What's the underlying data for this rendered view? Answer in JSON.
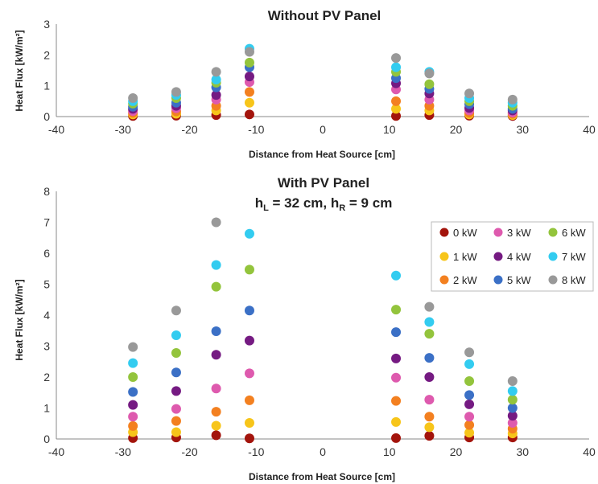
{
  "chart_data": [
    {
      "type": "scatter",
      "title": "Without PV Panel",
      "xlabel": "Distance from Heat Source [cm]",
      "ylabel": "Heat Flux [kW/m²]",
      "xlim": [
        -40,
        40
      ],
      "ylim": [
        0,
        3
      ],
      "xticks": [
        "-40",
        "-30",
        "-20",
        "-10",
        "0",
        "10",
        "20",
        "30",
        "40"
      ],
      "yticks": [
        "0",
        "1",
        "2",
        "3"
      ],
      "grid": false,
      "x": [
        -28.5,
        -22,
        -16,
        -11,
        11,
        16,
        22,
        28.5
      ],
      "series": [
        {
          "name": "0 kW",
          "color": "#a3140c",
          "values": [
            0.02,
            0.03,
            0.05,
            0.07,
            0.02,
            0.05,
            0.03,
            0.02
          ]
        },
        {
          "name": "1 kW",
          "color": "#f7c51a",
          "values": [
            0.07,
            0.09,
            0.2,
            0.45,
            0.25,
            0.2,
            0.07,
            0.05
          ]
        },
        {
          "name": "2 kW",
          "color": "#f38020",
          "values": [
            0.12,
            0.17,
            0.35,
            0.8,
            0.5,
            0.35,
            0.12,
            0.09
          ]
        },
        {
          "name": "3 kW",
          "color": "#de5aae",
          "values": [
            0.18,
            0.27,
            0.55,
            1.12,
            0.88,
            0.55,
            0.2,
            0.13
          ]
        },
        {
          "name": "4 kW",
          "color": "#751a82",
          "values": [
            0.25,
            0.35,
            0.7,
            1.3,
            1.08,
            0.75,
            0.28,
            0.2
          ]
        },
        {
          "name": "5 kW",
          "color": "#3b70c6",
          "values": [
            0.32,
            0.45,
            0.95,
            1.6,
            1.25,
            0.9,
            0.4,
            0.25
          ]
        },
        {
          "name": "6 kW",
          "color": "#93c43c",
          "values": [
            0.42,
            0.6,
            1.1,
            1.75,
            1.45,
            1.05,
            0.5,
            0.35
          ]
        },
        {
          "name": "7 kW",
          "color": "#33ccf0",
          "values": [
            0.5,
            0.7,
            1.2,
            2.2,
            1.6,
            1.45,
            0.6,
            0.45
          ]
        },
        {
          "name": "8 kW",
          "color": "#999999",
          "values": [
            0.6,
            0.8,
            1.45,
            2.1,
            1.9,
            1.4,
            0.75,
            0.55
          ]
        }
      ]
    },
    {
      "type": "scatter",
      "title": "With PV Panel",
      "subtitle_main": "h",
      "subtitle_sub_l": "L",
      "subtitle_mid": " = 32 cm, h",
      "subtitle_sub_r": "R",
      "subtitle_tail": " = 9 cm",
      "xlabel": "Distance from Heat Source [cm]",
      "ylabel": "Heat Flux [kW/m²]",
      "xlim": [
        -40,
        40
      ],
      "ylim": [
        0,
        8
      ],
      "xticks": [
        "-40",
        "-30",
        "-20",
        "-10",
        "0",
        "10",
        "20",
        "30",
        "40"
      ],
      "yticks": [
        "0",
        "1",
        "2",
        "3",
        "4",
        "5",
        "6",
        "7",
        "8"
      ],
      "grid": false,
      "legend": "top-right",
      "x": [
        -28.5,
        -22,
        -16,
        -11,
        11,
        16,
        22,
        28.5
      ],
      "series": [
        {
          "name": "0 kW",
          "color": "#a3140c",
          "values": [
            0.03,
            0.05,
            0.12,
            0.02,
            0.03,
            0.1,
            0.05,
            0.05
          ]
        },
        {
          "name": "1 kW",
          "color": "#f7c51a",
          "values": [
            0.22,
            0.22,
            0.43,
            0.52,
            0.55,
            0.38,
            0.2,
            0.18
          ]
        },
        {
          "name": "2 kW",
          "color": "#f38020",
          "values": [
            0.42,
            0.58,
            0.88,
            1.25,
            1.23,
            0.72,
            0.45,
            0.33
          ]
        },
        {
          "name": "3 kW",
          "color": "#de5aae",
          "values": [
            0.72,
            0.97,
            1.63,
            2.12,
            1.98,
            1.27,
            0.72,
            0.52
          ]
        },
        {
          "name": "4 kW",
          "color": "#751a82",
          "values": [
            1.1,
            1.55,
            2.72,
            3.18,
            2.6,
            2.0,
            1.12,
            0.75
          ]
        },
        {
          "name": "5 kW",
          "color": "#3b70c6",
          "values": [
            1.52,
            2.15,
            3.48,
            4.15,
            3.45,
            2.62,
            1.42,
            1.0
          ]
        },
        {
          "name": "6 kW",
          "color": "#93c43c",
          "values": [
            2.0,
            2.78,
            4.92,
            5.47,
            4.18,
            3.4,
            1.87,
            1.27
          ]
        },
        {
          "name": "7 kW",
          "color": "#33ccf0",
          "values": [
            2.45,
            3.35,
            5.62,
            6.63,
            5.28,
            3.78,
            2.42,
            1.55
          ]
        },
        {
          "name": "8 kW",
          "color": "#999999",
          "values": [
            2.97,
            4.15,
            7.0,
            0,
            0,
            4.27,
            2.8,
            1.87
          ]
        }
      ]
    }
  ]
}
